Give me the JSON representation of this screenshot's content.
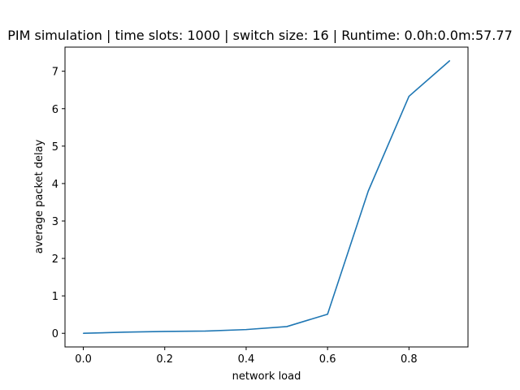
{
  "chart_data": {
    "type": "line",
    "title": "PIM simulation | time slots: 1000 | switch size: 16 | Runtime: 0.0h:0.0m:57.77",
    "xlabel": "network load",
    "ylabel": "average packet delay",
    "x": [
      0.0,
      0.1,
      0.2,
      0.3,
      0.4,
      0.5,
      0.6,
      0.7,
      0.8,
      0.9
    ],
    "series": [
      {
        "values": [
          0.0,
          0.03,
          0.05,
          0.06,
          0.1,
          0.18,
          0.51,
          3.8,
          6.33,
          7.28
        ],
        "color": "#1f77b4"
      }
    ],
    "xlim": [
      -0.045,
      0.945
    ],
    "ylim": [
      -0.364,
      7.644
    ],
    "xticks": [
      0.0,
      0.2,
      0.4,
      0.6,
      0.8
    ],
    "xtick_labels": [
      "0.0",
      "0.2",
      "0.4",
      "0.6",
      "0.8"
    ],
    "yticks": [
      0,
      1,
      2,
      3,
      4,
      5,
      6,
      7
    ],
    "ytick_labels": [
      "0",
      "1",
      "2",
      "3",
      "4",
      "5",
      "6",
      "7"
    ],
    "grid": false,
    "legend": false
  }
}
